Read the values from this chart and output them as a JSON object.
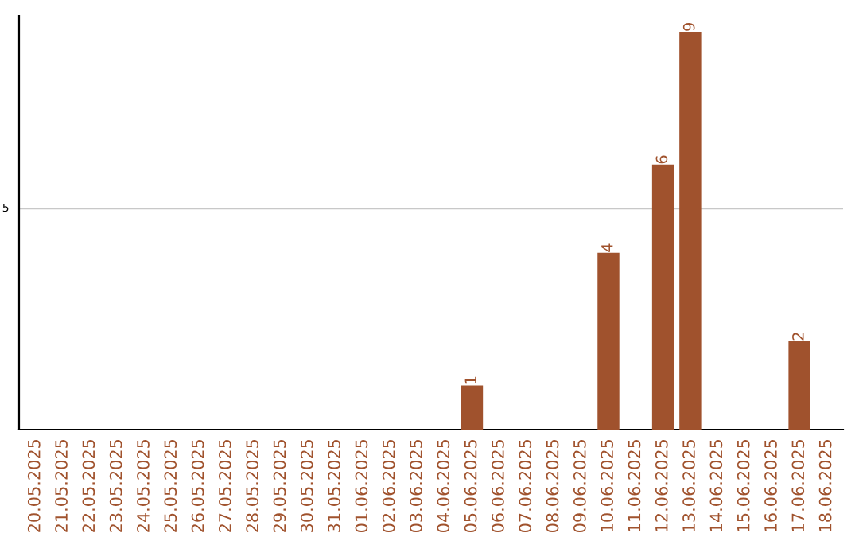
{
  "chart_data": {
    "type": "bar",
    "categories": [
      "20.05.2025",
      "21.05.2025",
      "22.05.2025",
      "23.05.2025",
      "24.05.2025",
      "25.05.2025",
      "26.05.2025",
      "27.05.2025",
      "28.05.2025",
      "29.05.2025",
      "30.05.2025",
      "31.05.2025",
      "01.06.2025",
      "02.06.2025",
      "03.06.2025",
      "04.06.2025",
      "05.06.2025",
      "06.06.2025",
      "07.06.2025",
      "08.06.2025",
      "09.06.2025",
      "10.06.2025",
      "11.06.2025",
      "12.06.2025",
      "13.06.2025",
      "14.06.2025",
      "15.06.2025",
      "16.06.2025",
      "17.06.2025",
      "18.06.2025"
    ],
    "values": [
      null,
      null,
      null,
      null,
      null,
      null,
      null,
      null,
      null,
      null,
      null,
      null,
      null,
      null,
      null,
      null,
      1,
      null,
      null,
      null,
      null,
      4,
      null,
      6,
      9,
      null,
      null,
      null,
      2,
      null
    ],
    "data_labels": true,
    "color": "#a0522d",
    "ref_lines": [
      {
        "axis": "y",
        "value": 5,
        "label": "5",
        "color": "#c8c8c8"
      }
    ]
  }
}
